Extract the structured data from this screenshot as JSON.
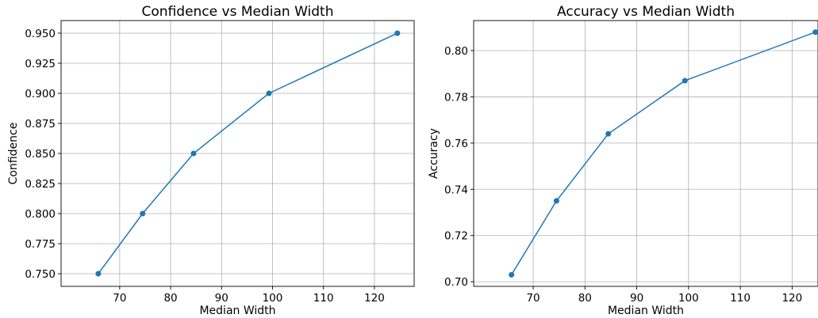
{
  "chart_data": [
    {
      "type": "line",
      "title": "Confidence vs Median Width",
      "xlabel": "Median Width",
      "ylabel": "Confidence",
      "x": [
        65.8,
        74.5,
        84.5,
        99.3,
        124.5
      ],
      "series": [
        {
          "values": [
            0.75,
            0.8,
            0.85,
            0.9,
            0.95
          ],
          "color": "#1f77b4"
        }
      ],
      "xlim": [
        58.5,
        127.8
      ],
      "ylim": [
        0.7395,
        0.9605
      ],
      "xticks": [
        70,
        80,
        90,
        100,
        110,
        120
      ],
      "yticks": [
        "0.750",
        "0.775",
        "0.800",
        "0.825",
        "0.850",
        "0.875",
        "0.900",
        "0.925",
        "0.950"
      ],
      "grid": true
    },
    {
      "type": "line",
      "title": "Accuracy vs Median Width",
      "xlabel": "Median Width",
      "ylabel": "Accuracy",
      "x": [
        65.8,
        74.5,
        84.5,
        99.3,
        124.5
      ],
      "series": [
        {
          "values": [
            0.703,
            0.735,
            0.764,
            0.787,
            0.808
          ],
          "color": "#1f77b4"
        }
      ],
      "xlim": [
        58.5,
        125
      ],
      "ylim": [
        0.698,
        0.813
      ],
      "xticks": [
        70,
        80,
        90,
        100,
        110,
        120
      ],
      "yticks": [
        "0.70",
        "0.72",
        "0.74",
        "0.76",
        "0.78",
        "0.80"
      ],
      "grid": true
    }
  ]
}
